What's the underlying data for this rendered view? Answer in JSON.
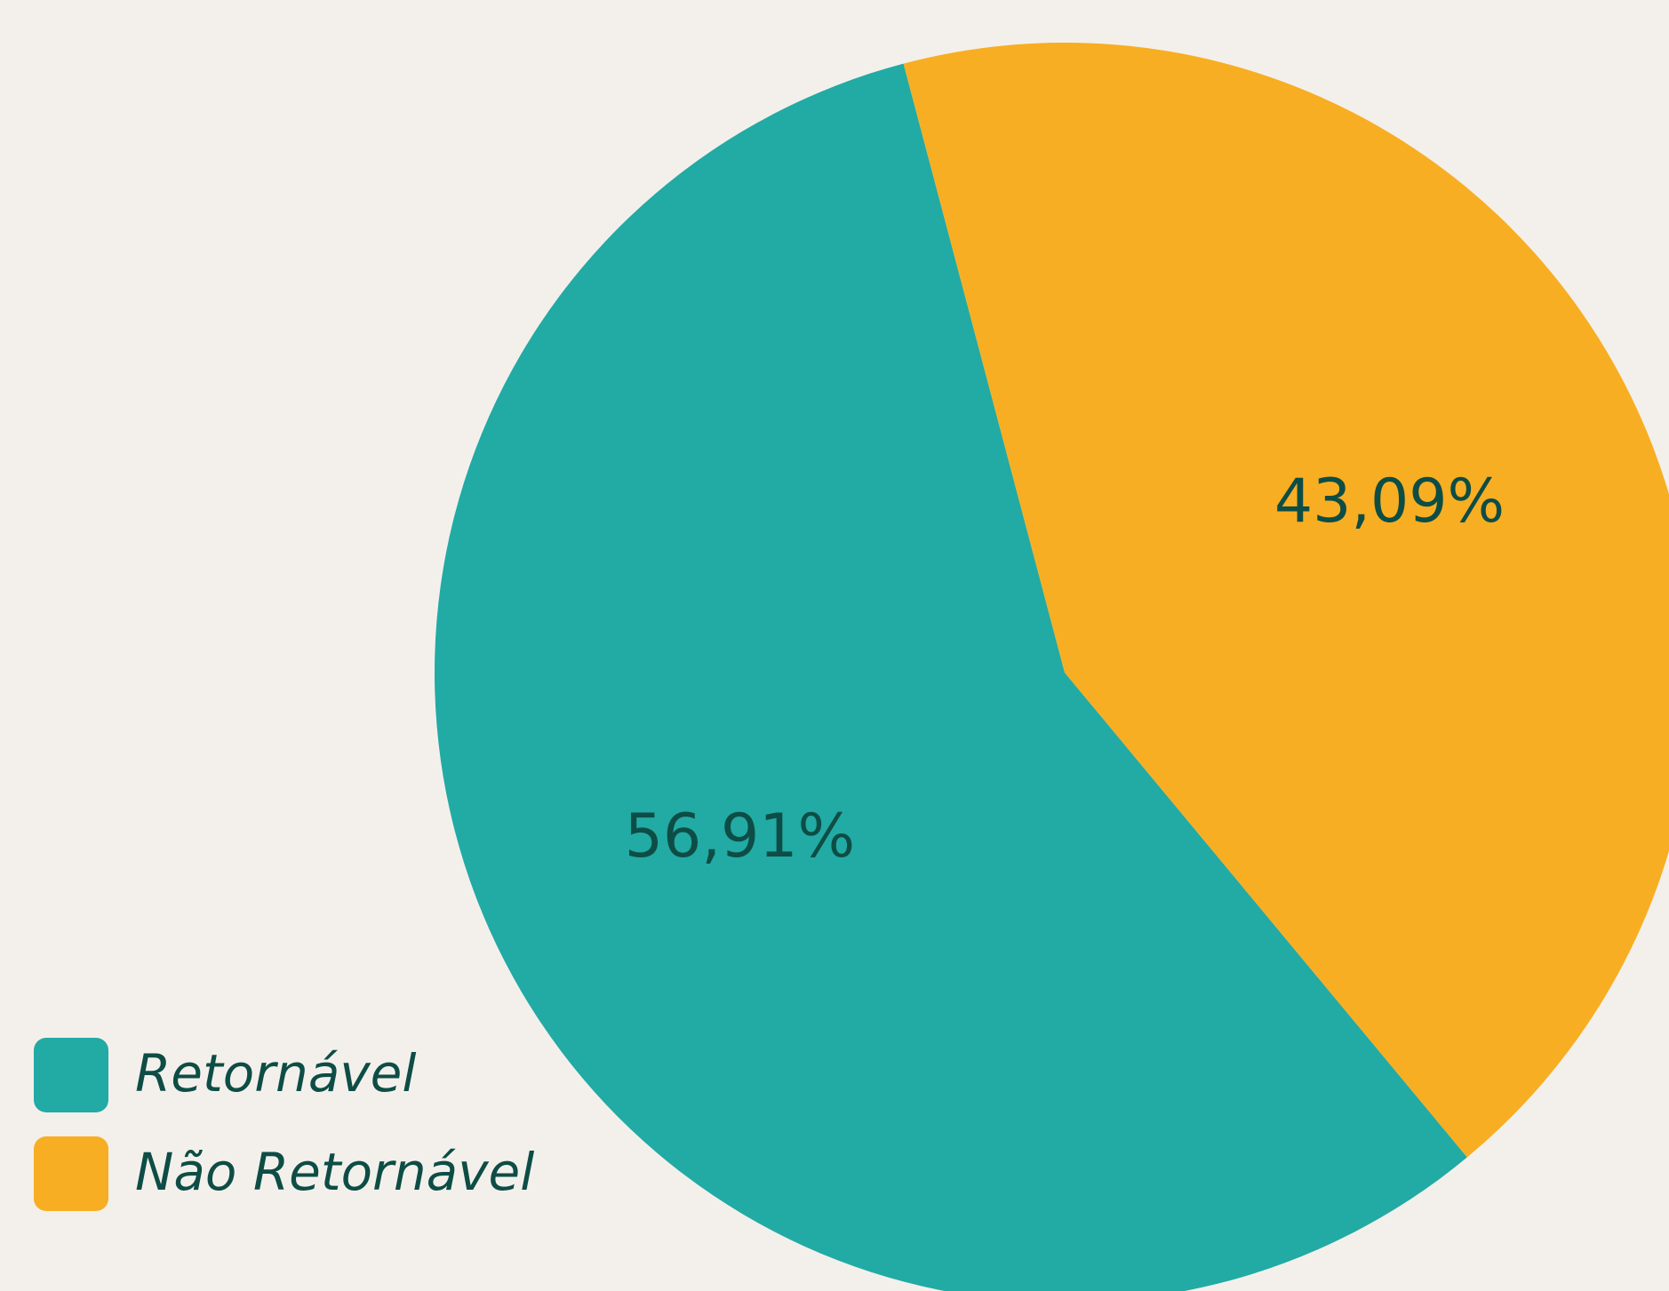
{
  "chart_data": {
    "type": "pie",
    "categories": [
      "Retornável",
      "Não Retornável"
    ],
    "values": [
      56.91,
      43.09
    ],
    "value_labels": [
      "56,91%",
      "43,09%"
    ],
    "colors": [
      "#22aaa5",
      "#f8ae22"
    ],
    "legend": "bottom-left"
  }
}
